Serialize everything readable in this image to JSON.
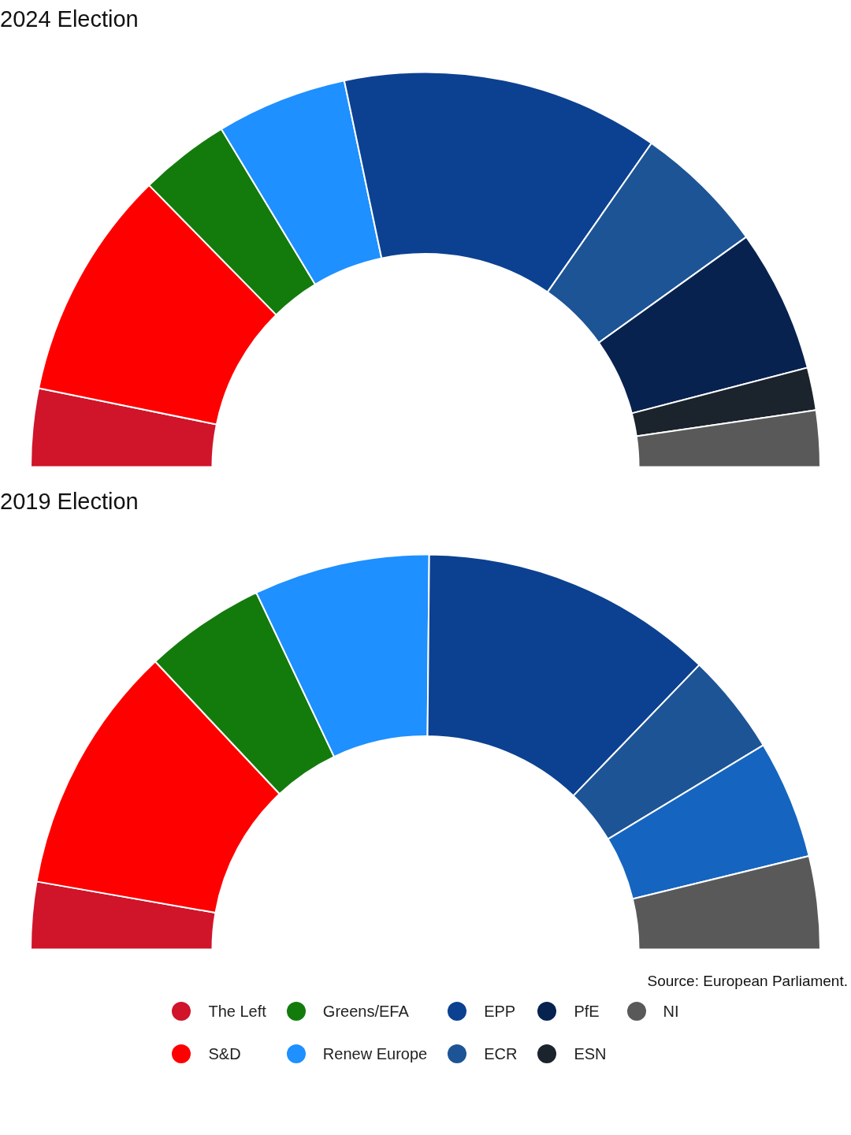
{
  "chart_data": [
    {
      "type": "donut",
      "title": "2024 Election",
      "legend": "bottom",
      "categories": [
        "The Left",
        "S&D",
        "Greens/EFA",
        "Renew Europe",
        "EPP",
        "ECR",
        "PfE",
        "ESN",
        "NI"
      ],
      "values": [
        6.4,
        18.9,
        7.4,
        10.7,
        26.0,
        10.8,
        11.7,
        3.5,
        4.6
      ],
      "colors": [
        "#d0142a",
        "#ff0000",
        "#137b0c",
        "#1e90ff",
        "#0c4191",
        "#1d5496",
        "#08224f",
        "#1b232c",
        "#595959"
      ]
    },
    {
      "type": "donut",
      "title": "2019 Election",
      "categories": [
        null,
        null,
        null,
        null,
        null,
        null,
        null,
        null
      ],
      "values": [
        5.5,
        20.5,
        9.9,
        14.4,
        24.1,
        8.3,
        9.7,
        7.6
      ],
      "colors": [
        "#d0142a",
        "#ff0000",
        "#137b0c",
        "#1e90ff",
        "#0c4191",
        "#1d5496",
        "#1565c0",
        "#595959"
      ],
      "annotations": [
        "Source: European Parliament."
      ]
    }
  ]
}
